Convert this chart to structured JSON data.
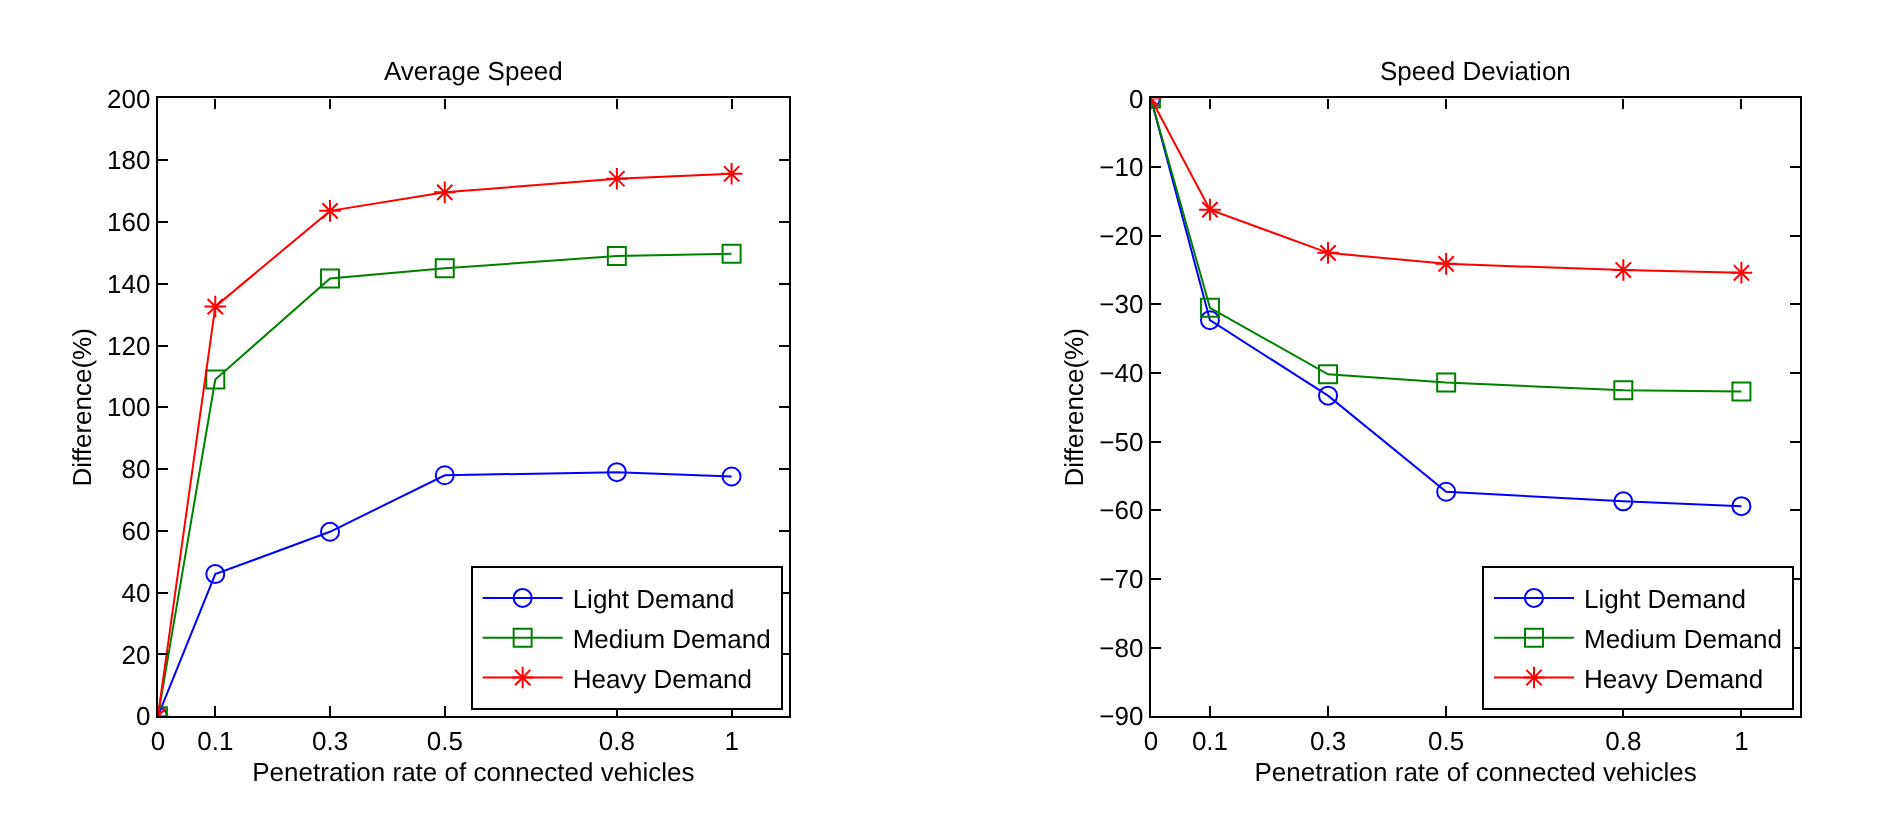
{
  "chart_data": [
    {
      "type": "line",
      "title": "Average Speed",
      "xlabel": "Penetration rate of connected vehicles",
      "ylabel": "Difference(%)",
      "x": [
        0,
        0.1,
        0.3,
        0.5,
        0.8,
        1
      ],
      "xlim": [
        0,
        1.1
      ],
      "xticks": [
        0,
        0.1,
        0.3,
        0.5,
        0.8,
        1
      ],
      "ylim": [
        0,
        200
      ],
      "yticks": [
        0,
        20,
        40,
        60,
        80,
        100,
        120,
        140,
        160,
        180,
        200
      ],
      "legend": "bottom right",
      "line_style": "solid",
      "series": [
        {
          "name": "Light Demand",
          "color": "#0000ff",
          "marker": "circle",
          "values": [
            0,
            46,
            59.7,
            78,
            79,
            77.6
          ]
        },
        {
          "name": "Medium Demand",
          "color": "#008000",
          "marker": "square",
          "values": [
            0,
            109,
            141.7,
            145,
            149,
            149.7
          ]
        },
        {
          "name": "Heavy Demand",
          "color": "#ff0000",
          "marker": "cross",
          "values": [
            0,
            132.6,
            163.6,
            169.6,
            174,
            175.6
          ]
        }
      ]
    },
    {
      "type": "line",
      "title": "Speed Deviation",
      "xlabel": "Penetration rate of connected vehicles",
      "ylabel": "Difference(%)",
      "x": [
        0,
        0.1,
        0.3,
        0.5,
        0.8,
        1
      ],
      "xlim": [
        0,
        1.1
      ],
      "xticks": [
        0,
        0.1,
        0.3,
        0.5,
        0.8,
        1
      ],
      "ylim": [
        -90,
        0
      ],
      "yticks": [
        -90,
        -80,
        -70,
        -60,
        -50,
        -40,
        -30,
        -20,
        -10,
        0
      ],
      "legend": "bottom right",
      "line_style": "solid",
      "series": [
        {
          "name": "Light Demand",
          "color": "#0000ff",
          "marker": "circle",
          "values": [
            0,
            -32.3,
            -43.3,
            -57.3,
            -58.7,
            -59.4
          ]
        },
        {
          "name": "Medium Demand",
          "color": "#008000",
          "marker": "square",
          "values": [
            0,
            -30.5,
            -40.2,
            -41.4,
            -42.5,
            -42.7
          ]
        },
        {
          "name": "Heavy Demand",
          "color": "#ff0000",
          "marker": "cross",
          "values": [
            0,
            -16.2,
            -22.5,
            -24.1,
            -25,
            -25.4
          ]
        }
      ]
    }
  ]
}
